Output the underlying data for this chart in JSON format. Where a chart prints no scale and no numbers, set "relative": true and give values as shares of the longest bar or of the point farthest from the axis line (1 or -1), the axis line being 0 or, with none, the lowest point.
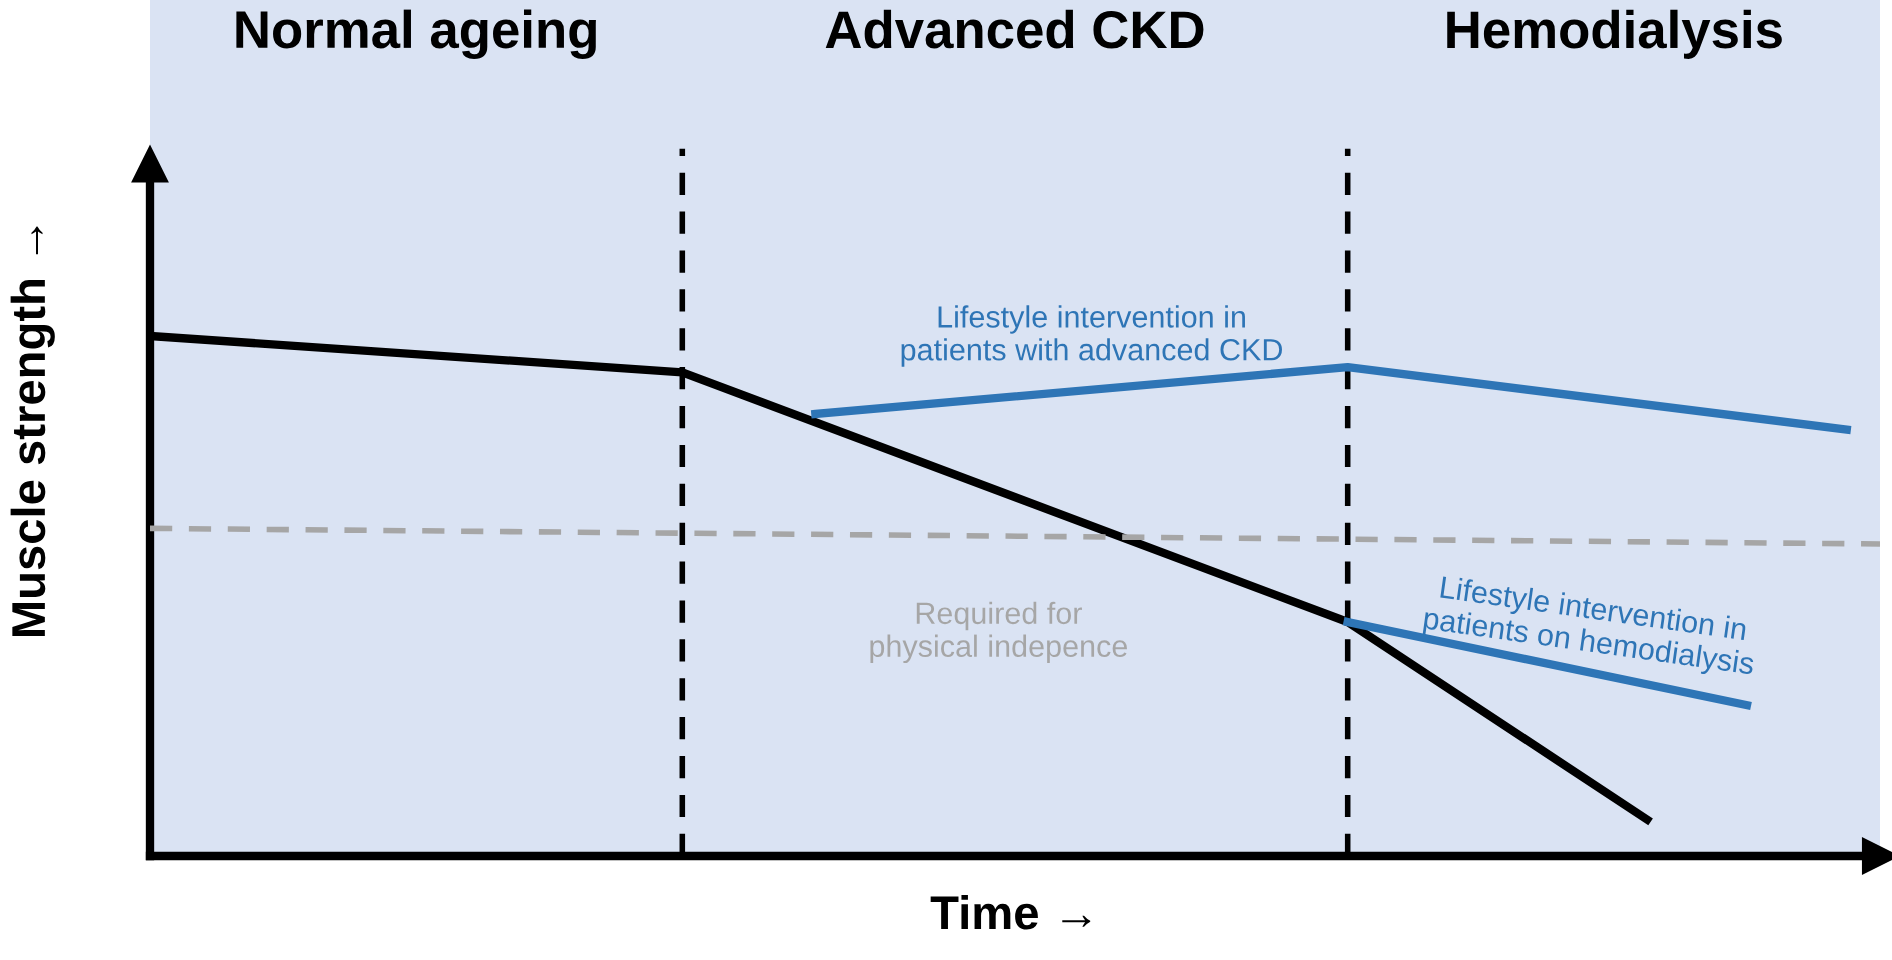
{
  "chart_data": {
    "type": "line",
    "relative": true,
    "xlabel": "Time →",
    "ylabel": "Muscle strength →",
    "categories": [
      null,
      null,
      null,
      null,
      null,
      null,
      null,
      null,
      null,
      null,
      null,
      null,
      null,
      null,
      null,
      null,
      null,
      null,
      null,
      null,
      null,
      null,
      null,
      null,
      null,
      null,
      null,
      null,
      null,
      null,
      null,
      null,
      null,
      null,
      null,
      null,
      null,
      null,
      null,
      null,
      null,
      null,
      null,
      null,
      null,
      null,
      null,
      null,
      null,
      null,
      null,
      null,
      null
    ],
    "series": [
      {
        "color": "#000000",
        "values": [
          1,
          null,
          null,
          null,
          null,
          null,
          null,
          null,
          null,
          null,
          null,
          null,
          null,
          null,
          null,
          null,
          0.93,
          null,
          null,
          null,
          null,
          null,
          null,
          null,
          null,
          null,
          null,
          null,
          null,
          null,
          null,
          null,
          null,
          null,
          null,
          null,
          0.45,
          null,
          null,
          null,
          null,
          null,
          null,
          null,
          null,
          0.07,
          null,
          null,
          null,
          null,
          null,
          null,
          null
        ]
      },
      {
        "name": "Required for physical indepence",
        "color": "#a6a6a6",
        "line_style": "dashed",
        "values": [
          0.63,
          null,
          null,
          null,
          null,
          null,
          null,
          null,
          null,
          null,
          null,
          null,
          null,
          null,
          null,
          null,
          null,
          null,
          null,
          null,
          null,
          null,
          null,
          null,
          null,
          null,
          null,
          null,
          null,
          null,
          null,
          null,
          null,
          null,
          null,
          null,
          null,
          null,
          null,
          null,
          null,
          null,
          null,
          null,
          null,
          null,
          null,
          null,
          null,
          null,
          null,
          null,
          0.6
        ]
      },
      {
        "name": "Lifestyle intervention in patients with advanced CKD",
        "color": "#2e75b6",
        "values": [
          null,
          null,
          null,
          null,
          null,
          null,
          null,
          null,
          null,
          null,
          null,
          null,
          null,
          null,
          null,
          null,
          null,
          null,
          null,
          null,
          0.85,
          null,
          null,
          null,
          null,
          null,
          null,
          null,
          null,
          null,
          null,
          null,
          null,
          null,
          null,
          null,
          0.94,
          null,
          null,
          null,
          null,
          null,
          null,
          null,
          null,
          null,
          null,
          null,
          null,
          null,
          null,
          0.82,
          null
        ]
      },
      {
        "name": "Lifestyle intervention in patients on hemodialysis",
        "color": "#2e75b6",
        "values": [
          null,
          null,
          null,
          null,
          null,
          null,
          null,
          null,
          null,
          null,
          null,
          null,
          null,
          null,
          null,
          null,
          null,
          null,
          null,
          null,
          null,
          null,
          null,
          null,
          null,
          null,
          null,
          null,
          null,
          null,
          null,
          null,
          null,
          null,
          null,
          null,
          0.45,
          null,
          null,
          null,
          null,
          null,
          null,
          null,
          null,
          null,
          null,
          null,
          0.29,
          null,
          null,
          null,
          null
        ]
      }
    ],
    "annotations": [
      "Normal ageing",
      "Advanced CKD",
      "Hemodialysis"
    ],
    "grid": false,
    "legend": false,
    "tick_labels": false
  }
}
